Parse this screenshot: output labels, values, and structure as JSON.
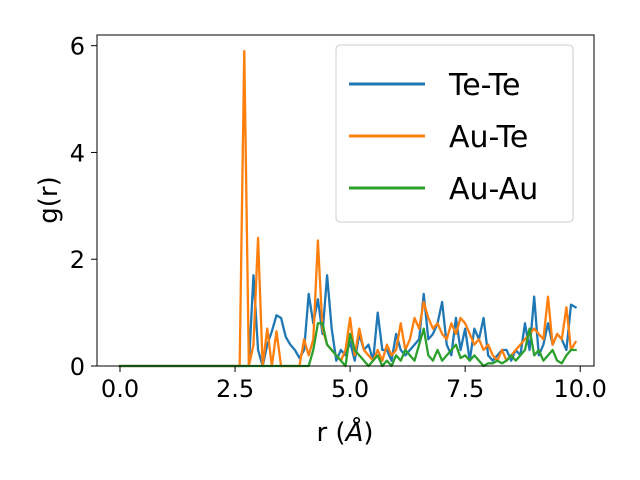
{
  "chart_data": {
    "type": "line",
    "xlabel_main": "r (",
    "xlabel_unit": "Å",
    "xlabel_close": ")",
    "ylabel": "g(r)",
    "xlim": [
      -0.5,
      10.3
    ],
    "ylim": [
      0,
      6.2
    ],
    "x_ticks": [
      0,
      2.5,
      5,
      7.5,
      10
    ],
    "x_tick_labels": [
      "0.0",
      "2.5",
      "5.0",
      "7.5",
      "10.0"
    ],
    "y_ticks": [
      0,
      2,
      4,
      6
    ],
    "y_tick_labels": [
      "0",
      "2",
      "4",
      "6"
    ],
    "grid": false,
    "legend_position": "top-right",
    "series": [
      {
        "name": "Te-Te",
        "color": "#1f77b4",
        "points": [
          [
            0,
            0
          ],
          [
            2.7,
            0
          ],
          [
            2.8,
            0
          ],
          [
            2.9,
            1.7
          ],
          [
            3.0,
            0.3
          ],
          [
            3.1,
            0
          ],
          [
            3.2,
            0.4
          ],
          [
            3.3,
            0.65
          ],
          [
            3.4,
            0.95
          ],
          [
            3.5,
            0.9
          ],
          [
            3.6,
            0.55
          ],
          [
            3.7,
            0.4
          ],
          [
            3.8,
            0.3
          ],
          [
            3.9,
            0.15
          ],
          [
            4.0,
            0.3
          ],
          [
            4.1,
            1.35
          ],
          [
            4.2,
            0.8
          ],
          [
            4.3,
            1.25
          ],
          [
            4.4,
            0.6
          ],
          [
            4.5,
            1.7
          ],
          [
            4.6,
            0.7
          ],
          [
            4.7,
            0.1
          ],
          [
            4.8,
            0.3
          ],
          [
            4.9,
            0.2
          ],
          [
            5.0,
            0.45
          ],
          [
            5.1,
            0.1
          ],
          [
            5.2,
            0.6
          ],
          [
            5.3,
            0.3
          ],
          [
            5.4,
            0.4
          ],
          [
            5.5,
            0.1
          ],
          [
            5.6,
            1.0
          ],
          [
            5.7,
            0.3
          ],
          [
            5.8,
            0.3
          ],
          [
            5.9,
            0.1
          ],
          [
            6.0,
            0.6
          ],
          [
            6.1,
            0.3
          ],
          [
            6.2,
            0.2
          ],
          [
            6.3,
            0.3
          ],
          [
            6.4,
            0.4
          ],
          [
            6.5,
            0.5
          ],
          [
            6.6,
            1.35
          ],
          [
            6.7,
            0.5
          ],
          [
            6.8,
            0.6
          ],
          [
            6.9,
            0.8
          ],
          [
            7.0,
            1.2
          ],
          [
            7.1,
            0.4
          ],
          [
            7.2,
            0.2
          ],
          [
            7.3,
            0.9
          ],
          [
            7.4,
            0.3
          ],
          [
            7.5,
            0.7
          ],
          [
            7.6,
            0.1
          ],
          [
            7.7,
            0.7
          ],
          [
            7.8,
            0.5
          ],
          [
            7.9,
            0.9
          ],
          [
            8.0,
            0.2
          ],
          [
            8.1,
            0.1
          ],
          [
            8.2,
            0.2
          ],
          [
            8.3,
            0.3
          ],
          [
            8.4,
            0.3
          ],
          [
            8.5,
            0.1
          ],
          [
            8.6,
            0.3
          ],
          [
            8.7,
            0.2
          ],
          [
            8.8,
            0.8
          ],
          [
            8.9,
            0.3
          ],
          [
            9.0,
            1.3
          ],
          [
            9.1,
            0.2
          ],
          [
            9.2,
            0.4
          ],
          [
            9.3,
            0.8
          ],
          [
            9.4,
            0.4
          ],
          [
            9.5,
            0.6
          ],
          [
            9.6,
            0.5
          ],
          [
            9.7,
            0.3
          ],
          [
            9.8,
            1.15
          ],
          [
            9.9,
            1.1
          ]
        ]
      },
      {
        "name": "Au-Te",
        "color": "#ff7f0e",
        "points": [
          [
            0,
            0
          ],
          [
            2.6,
            0
          ],
          [
            2.7,
            5.9
          ],
          [
            2.8,
            0
          ],
          [
            2.9,
            0.4
          ],
          [
            3.0,
            2.4
          ],
          [
            3.1,
            0
          ],
          [
            3.2,
            0.7
          ],
          [
            3.3,
            0
          ],
          [
            3.4,
            0.65
          ],
          [
            3.5,
            0
          ],
          [
            3.9,
            0
          ],
          [
            4.0,
            0.5
          ],
          [
            4.1,
            0.2
          ],
          [
            4.2,
            0.5
          ],
          [
            4.3,
            2.35
          ],
          [
            4.4,
            0.7
          ],
          [
            4.5,
            0.4
          ],
          [
            4.6,
            0.3
          ],
          [
            4.7,
            0.2
          ],
          [
            4.8,
            0.1
          ],
          [
            4.9,
            0.3
          ],
          [
            5.0,
            0.9
          ],
          [
            5.1,
            0.2
          ],
          [
            5.2,
            0.7
          ],
          [
            5.3,
            0.3
          ],
          [
            5.4,
            0.2
          ],
          [
            5.5,
            0.1
          ],
          [
            5.6,
            0.3
          ],
          [
            5.7,
            0.1
          ],
          [
            5.8,
            0.4
          ],
          [
            5.9,
            0.2
          ],
          [
            6.0,
            0.3
          ],
          [
            6.1,
            0.8
          ],
          [
            6.2,
            0.3
          ],
          [
            6.3,
            0.5
          ],
          [
            6.4,
            0.9
          ],
          [
            6.5,
            0.7
          ],
          [
            6.6,
            1.2
          ],
          [
            6.7,
            0.9
          ],
          [
            6.8,
            0.7
          ],
          [
            6.9,
            0.8
          ],
          [
            7.0,
            0.6
          ],
          [
            7.1,
            0.5
          ],
          [
            7.2,
            0.8
          ],
          [
            7.3,
            0.6
          ],
          [
            7.4,
            0.9
          ],
          [
            7.5,
            0.8
          ],
          [
            7.6,
            0.6
          ],
          [
            7.7,
            0.4
          ],
          [
            7.8,
            0.5
          ],
          [
            7.9,
            0.3
          ],
          [
            8.0,
            0.4
          ],
          [
            8.1,
            0.2
          ],
          [
            8.2,
            0.1
          ],
          [
            8.3,
            0.3
          ],
          [
            8.4,
            0.1
          ],
          [
            8.5,
            0.2
          ],
          [
            8.6,
            0.3
          ],
          [
            8.7,
            0.4
          ],
          [
            8.8,
            0.5
          ],
          [
            8.9,
            0.6
          ],
          [
            9.0,
            0.7
          ],
          [
            9.1,
            0.6
          ],
          [
            9.2,
            0.5
          ],
          [
            9.3,
            1.3
          ],
          [
            9.4,
            0.4
          ],
          [
            9.5,
            0.6
          ],
          [
            9.6,
            0.5
          ],
          [
            9.7,
            1.1
          ],
          [
            9.8,
            0.3
          ],
          [
            9.9,
            0.45
          ]
        ]
      },
      {
        "name": "Au-Au",
        "color": "#2ca02c",
        "points": [
          [
            0,
            0
          ],
          [
            4.1,
            0
          ],
          [
            4.2,
            0.3
          ],
          [
            4.3,
            0.8
          ],
          [
            4.4,
            0.8
          ],
          [
            4.5,
            0.4
          ],
          [
            4.6,
            0.3
          ],
          [
            4.7,
            0.2
          ],
          [
            4.8,
            0.1
          ],
          [
            4.9,
            0
          ],
          [
            5.0,
            0.6
          ],
          [
            5.1,
            0.3
          ],
          [
            5.2,
            0.2
          ],
          [
            5.3,
            0.1
          ],
          [
            5.4,
            0
          ],
          [
            5.5,
            0.1
          ],
          [
            5.6,
            0.2
          ],
          [
            5.7,
            0
          ],
          [
            5.8,
            0.1
          ],
          [
            5.9,
            0
          ],
          [
            6.0,
            0.2
          ],
          [
            6.1,
            0.1
          ],
          [
            6.2,
            0.3
          ],
          [
            6.3,
            0.2
          ],
          [
            6.4,
            0.1
          ],
          [
            6.5,
            0.4
          ],
          [
            6.6,
            0.7
          ],
          [
            6.7,
            0.2
          ],
          [
            6.8,
            0.1
          ],
          [
            6.9,
            0.3
          ],
          [
            7.0,
            0.1
          ],
          [
            7.1,
            0.2
          ],
          [
            7.2,
            0.3
          ],
          [
            7.3,
            0.4
          ],
          [
            7.4,
            0.15
          ],
          [
            7.5,
            0.2
          ],
          [
            7.6,
            0.1
          ],
          [
            7.7,
            0.2
          ],
          [
            7.8,
            0.1
          ],
          [
            7.9,
            0
          ],
          [
            8.0,
            0.05
          ],
          [
            8.1,
            0.05
          ],
          [
            8.2,
            0.1
          ],
          [
            8.3,
            0.05
          ],
          [
            8.4,
            0.1
          ],
          [
            8.5,
            0.2
          ],
          [
            8.6,
            0.1
          ],
          [
            8.7,
            0.2
          ],
          [
            8.8,
            0.3
          ],
          [
            8.9,
            0.7
          ],
          [
            9.0,
            0.2
          ],
          [
            9.1,
            0.3
          ],
          [
            9.2,
            0.1
          ],
          [
            9.3,
            0.2
          ],
          [
            9.4,
            0.3
          ],
          [
            9.5,
            0.1
          ],
          [
            9.6,
            0.05
          ],
          [
            9.7,
            0.2
          ],
          [
            9.8,
            0.3
          ],
          [
            9.9,
            0.3
          ]
        ]
      }
    ]
  }
}
